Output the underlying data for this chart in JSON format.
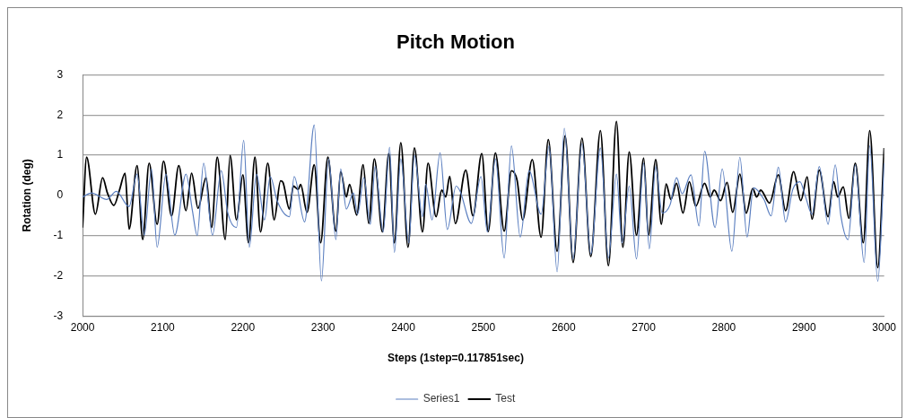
{
  "chart_data": {
    "type": "line",
    "title": "Pitch Motion",
    "xlabel": "Steps (1step=0.117851sec)",
    "ylabel": "Rotation (deg)",
    "xlim": [
      2000,
      3000
    ],
    "xticks": [
      2000,
      2100,
      2200,
      2300,
      2400,
      2500,
      2600,
      2700,
      2800,
      2900,
      3000
    ],
    "ylim": [
      -3,
      3
    ],
    "yticks": [
      -3,
      -2,
      -1,
      0,
      1,
      2,
      3
    ],
    "grid": "y",
    "legend": "bottom",
    "marker": "none",
    "line_style": "solid",
    "series": [
      {
        "name": "Series1",
        "color": "#5b7fc0",
        "x": [
          2000,
          2011,
          2030,
          2042,
          2058,
          2068,
          2077,
          2086,
          2093,
          2104,
          2115,
          2129,
          2137,
          2143,
          2151,
          2162,
          2173,
          2181,
          2192,
          2201,
          2208,
          2217,
          2227,
          2234,
          2243,
          2258,
          2264,
          2277,
          2289,
          2298,
          2307,
          2316,
          2322,
          2329,
          2338,
          2343,
          2351,
          2359,
          2365,
          2375,
          2383,
          2389,
          2397,
          2407,
          2414,
          2424,
          2428,
          2436,
          2446,
          2455,
          2466,
          2471,
          2485,
          2497,
          2505,
          2515,
          2526,
          2535,
          2546,
          2557,
          2572,
          2582,
          2592,
          2601,
          2612,
          2623,
          2634,
          2646,
          2656,
          2666,
          2673,
          2682,
          2691,
          2700,
          2707,
          2715,
          2723,
          2733,
          2741,
          2748,
          2759,
          2769,
          2776,
          2789,
          2798,
          2810,
          2820,
          2829,
          2837,
          2850,
          2859,
          2868,
          2877,
          2886,
          2895,
          2902,
          2910,
          2919,
          2930,
          2939,
          2946,
          2955,
          2964,
          2975,
          2982,
          2992,
          3000
        ],
        "values": [
          -0.04,
          0.06,
          -0.1,
          0.1,
          -0.28,
          0.53,
          -0.99,
          0.66,
          -1.29,
          0.53,
          -0.99,
          0.53,
          -0.38,
          -1.0,
          0.8,
          -0.99,
          0.61,
          -0.42,
          -0.8,
          1.37,
          -1.29,
          0.53,
          -0.61,
          0.47,
          -0.15,
          -0.53,
          0.47,
          -0.66,
          1.75,
          -2.13,
          0.91,
          -1.1,
          0.66,
          -0.34,
          0.06,
          -0.47,
          0.44,
          -0.72,
          0.72,
          -0.91,
          1.2,
          -1.42,
          0.91,
          -1.18,
          0.99,
          -0.53,
          0.28,
          -0.61,
          1.06,
          -0.85,
          0.23,
          0.1,
          -0.7,
          0.47,
          -0.91,
          0.91,
          -1.56,
          1.23,
          -1.04,
          0.61,
          -0.47,
          1.23,
          -1.9,
          1.67,
          -1.58,
          1.29,
          -1.46,
          1.18,
          -1.56,
          0.53,
          -1.18,
          0.23,
          -1.58,
          0.8,
          -1.33,
          0.72,
          -0.44,
          -0.23,
          0.44,
          0.04,
          0.51,
          -0.76,
          1.1,
          -0.8,
          0.66,
          -1.39,
          0.95,
          -1.04,
          0.19,
          -0.1,
          -0.51,
          0.7,
          -0.66,
          0.15,
          0.34,
          -0.04,
          -0.47,
          0.72,
          -0.72,
          0.76,
          -0.51,
          -1.1,
          0.76,
          -1.67,
          1.23,
          -2.14,
          0.8
        ]
      },
      {
        "name": "Test",
        "color": "#000000",
        "x": [
          2000,
          2005,
          2016,
          2025,
          2031,
          2039,
          2046,
          2053,
          2058,
          2068,
          2075,
          2083,
          2093,
          2101,
          2111,
          2120,
          2129,
          2136,
          2144,
          2154,
          2161,
          2168,
          2178,
          2184,
          2192,
          2200,
          2207,
          2215,
          2222,
          2231,
          2239,
          2247,
          2250,
          2258,
          2263,
          2269,
          2272,
          2280,
          2289,
          2297,
          2306,
          2316,
          2322,
          2329,
          2333,
          2342,
          2350,
          2357,
          2364,
          2374,
          2382,
          2389,
          2397,
          2406,
          2414,
          2424,
          2431,
          2441,
          2448,
          2453,
          2458,
          2465,
          2478,
          2487,
          2498,
          2506,
          2515,
          2526,
          2535,
          2542,
          2549,
          2561,
          2572,
          2581,
          2592,
          2602,
          2612,
          2623,
          2634,
          2646,
          2656,
          2666,
          2674,
          2682,
          2691,
          2700,
          2706,
          2715,
          2722,
          2728,
          2734,
          2741,
          2749,
          2757,
          2765,
          2776,
          2783,
          2788,
          2796,
          2804,
          2811,
          2820,
          2828,
          2836,
          2841,
          2846,
          2857,
          2868,
          2877,
          2887,
          2896,
          2904,
          2910,
          2919,
          2930,
          2937,
          2942,
          2949,
          2956,
          2964,
          2974,
          2982,
          2992,
          3000
        ],
        "values": [
          -0.8,
          0.95,
          -0.47,
          0.44,
          0.06,
          -0.25,
          0.13,
          0.55,
          -0.84,
          0.74,
          -1.1,
          0.8,
          -0.72,
          0.85,
          -0.51,
          0.74,
          -0.38,
          0.55,
          -0.32,
          0.44,
          -0.8,
          0.95,
          -1.1,
          0.99,
          -0.61,
          0.51,
          -1.18,
          0.95,
          -0.91,
          0.8,
          -0.61,
          0.36,
          0.32,
          -0.34,
          0.23,
          0.15,
          0.27,
          -0.42,
          0.76,
          -1.18,
          0.95,
          -0.89,
          0.59,
          -0.04,
          0.27,
          -0.49,
          0.76,
          -0.7,
          0.91,
          -0.91,
          1.04,
          -1.18,
          1.31,
          -1.29,
          1.18,
          -0.91,
          0.8,
          -0.53,
          0.13,
          -0.04,
          0.47,
          -0.7,
          0.63,
          -0.51,
          1.04,
          -0.9,
          1.06,
          -0.89,
          0.61,
          0.38,
          -0.61,
          0.89,
          -1.04,
          1.39,
          -1.39,
          1.48,
          -1.67,
          1.42,
          -1.52,
          1.61,
          -1.75,
          1.84,
          -1.29,
          1.08,
          -0.99,
          0.93,
          -0.99,
          0.89,
          -0.72,
          0.28,
          -0.1,
          0.3,
          -0.44,
          0.34,
          -0.27,
          0.3,
          -0.04,
          0.13,
          -0.13,
          0.32,
          -0.42,
          0.53,
          -0.44,
          0.17,
          -0.04,
          0.13,
          -0.19,
          0.51,
          -0.38,
          0.59,
          -0.13,
          0.46,
          -0.59,
          0.63,
          -0.53,
          0.34,
          -0.04,
          0.21,
          -0.57,
          0.8,
          -1.18,
          1.61,
          -1.8,
          1.18
        ]
      }
    ]
  }
}
